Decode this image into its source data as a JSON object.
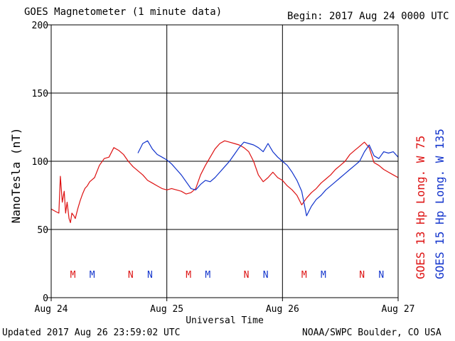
{
  "header": {
    "title": "GOES Magnetometer (1 minute data)",
    "begin": "Begin:  2017 Aug 24 0000 UTC"
  },
  "footer": {
    "updated": "Updated 2017 Aug 26 23:59:02 UTC",
    "credit": "NOAA/SWPC Boulder, CO USA"
  },
  "colors": {
    "goes13": "#dd1111",
    "goes15": "#1133cc"
  },
  "chart_data": {
    "type": "line",
    "xlabel": "Universal Time",
    "ylabel": "NanoTesla (nT)",
    "ylim": [
      0,
      200
    ],
    "yticks": [
      0,
      50,
      100,
      150,
      200
    ],
    "xlim": [
      0,
      72
    ],
    "x_unit": "hours since 2017 Aug 24 0000 UTC",
    "xticks": [
      {
        "x": 0,
        "label": "Aug 24"
      },
      {
        "x": 24,
        "label": "Aug 25"
      },
      {
        "x": 48,
        "label": "Aug 26"
      },
      {
        "x": 72,
        "label": "Aug 27"
      }
    ],
    "grid": true,
    "legend_placement": "right-vertical",
    "series": [
      {
        "name": "GOES 13 Hp  Long. W 75",
        "color": "#dd1111",
        "x": [
          0,
          0.5,
          1,
          1.6,
          1.9,
          2.3,
          2.7,
          3,
          3.3,
          3.7,
          4,
          4.3,
          4.7,
          5,
          5.5,
          6,
          6.5,
          7,
          7.5,
          8,
          9,
          10,
          11,
          12,
          13,
          14,
          15,
          16,
          17,
          18,
          19,
          20,
          21,
          22,
          23,
          24,
          25,
          26,
          27,
          28,
          29,
          30,
          31,
          32,
          33,
          34,
          35,
          36,
          37,
          38,
          39,
          40,
          41,
          42,
          43,
          44,
          45,
          46,
          47,
          48,
          49,
          50,
          51,
          52,
          53,
          54,
          55,
          56,
          57,
          58,
          59,
          60,
          61,
          62,
          63,
          64,
          65,
          66,
          67,
          68,
          69,
          70,
          71,
          72
        ],
        "y": [
          65,
          64,
          63,
          62,
          89,
          70,
          78,
          62,
          70,
          58,
          55,
          62,
          60,
          58,
          65,
          71,
          76,
          80,
          82,
          85,
          88,
          97,
          102,
          103,
          110,
          108,
          105,
          100,
          96,
          93,
          90,
          86,
          84,
          82,
          80,
          79,
          80,
          79,
          78,
          76,
          77,
          80,
          90,
          97,
          103,
          109,
          113,
          115,
          114,
          113,
          112,
          110,
          107,
          100,
          90,
          85,
          88,
          92,
          88,
          86,
          82,
          79,
          75,
          68,
          73,
          77,
          80,
          84,
          87,
          90,
          94,
          97,
          100,
          105,
          108,
          111,
          114,
          110,
          99,
          97,
          94,
          92,
          90,
          88
        ]
      },
      {
        "name": "GOES 15 Hp  Long. W 135",
        "color": "#1133cc",
        "x": [
          18,
          19,
          20,
          21,
          22,
          23,
          24,
          25,
          26,
          27,
          28,
          29,
          30,
          31,
          32,
          33,
          34,
          35,
          36,
          37,
          38,
          39,
          40,
          41,
          42,
          43,
          44,
          45,
          46,
          47,
          48,
          49,
          50,
          51,
          52,
          53,
          54,
          55,
          56,
          57,
          58,
          59,
          60,
          61,
          62,
          63,
          64,
          65,
          66,
          67,
          68,
          69,
          70,
          71,
          72
        ],
        "y": [
          106,
          113,
          115,
          109,
          105,
          103,
          101,
          98,
          94,
          90,
          85,
          80,
          79,
          83,
          86,
          85,
          88,
          92,
          96,
          100,
          105,
          110,
          114,
          113,
          112,
          110,
          107,
          113,
          107,
          103,
          100,
          97,
          92,
          86,
          78,
          60,
          67,
          72,
          75,
          79,
          82,
          85,
          88,
          91,
          94,
          97,
          100,
          107,
          112,
          104,
          102,
          107,
          106,
          107,
          103
        ]
      }
    ],
    "markers": [
      {
        "label": "M",
        "x": 4.5,
        "series": 0
      },
      {
        "label": "M",
        "x": 8.5,
        "series": 1
      },
      {
        "label": "N",
        "x": 16.5,
        "series": 0
      },
      {
        "label": "N",
        "x": 20.5,
        "series": 1
      },
      {
        "label": "M",
        "x": 28.5,
        "series": 0
      },
      {
        "label": "M",
        "x": 32.5,
        "series": 1
      },
      {
        "label": "N",
        "x": 40.5,
        "series": 0
      },
      {
        "label": "N",
        "x": 44.5,
        "series": 1
      },
      {
        "label": "M",
        "x": 52.5,
        "series": 0
      },
      {
        "label": "M",
        "x": 56.5,
        "series": 1
      },
      {
        "label": "N",
        "x": 64.5,
        "series": 0
      },
      {
        "label": "N",
        "x": 68.5,
        "series": 1
      }
    ]
  }
}
